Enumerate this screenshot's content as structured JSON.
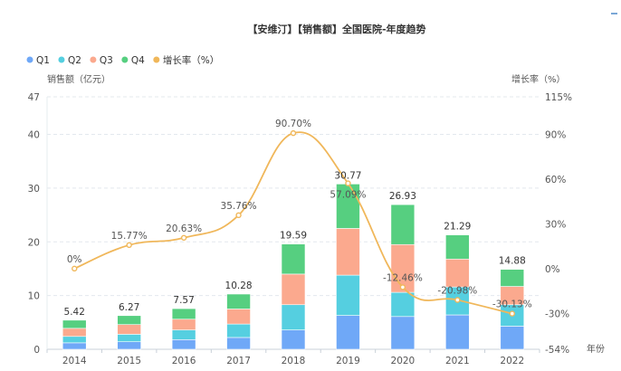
{
  "chart_data": {
    "type": "bar",
    "stacked": true,
    "title": "【安维汀】【销售额】全国医院-年度趋势",
    "xlabel": "年份",
    "ylabel": "销售额（亿元）",
    "ylabel_right": "增长率（%）",
    "categories": [
      "2014",
      "2015",
      "2016",
      "2017",
      "2018",
      "2019",
      "2020",
      "2021",
      "2022"
    ],
    "ylim": [
      0,
      47
    ],
    "yticks": [
      0,
      10,
      20,
      30,
      40,
      47
    ],
    "y2lim": [
      -54,
      115
    ],
    "y2ticks": [
      "-54%",
      "-30%",
      "0%",
      "30%",
      "60%",
      "90%",
      "115%"
    ],
    "y2tick_values": [
      -54,
      -30,
      0,
      30,
      60,
      90,
      115
    ],
    "legend_position": "top-left",
    "grid": true,
    "series": [
      {
        "name": "Q1",
        "color": "#6fa8f7",
        "values": [
          1.2,
          1.4,
          1.8,
          2.2,
          3.6,
          6.3,
          6.1,
          6.4,
          4.3
        ]
      },
      {
        "name": "Q2",
        "color": "#55cfe0",
        "values": [
          1.2,
          1.4,
          1.8,
          2.5,
          4.7,
          7.5,
          4.5,
          5.2,
          4.0
        ]
      },
      {
        "name": "Q3",
        "color": "#fba98e",
        "values": [
          1.5,
          1.8,
          2.0,
          2.8,
          5.7,
          8.7,
          8.9,
          5.2,
          3.4
        ]
      },
      {
        "name": "Q4",
        "color": "#56cf80",
        "values": [
          1.52,
          1.67,
          1.97,
          2.78,
          5.59,
          8.27,
          7.43,
          4.49,
          3.18
        ]
      }
    ],
    "totals": [
      "5.42",
      "6.27",
      "7.57",
      "10.28",
      "19.59",
      "30.77",
      "26.93",
      "21.29",
      "14.88"
    ],
    "total_values": [
      5.42,
      6.27,
      7.57,
      10.28,
      19.59,
      30.77,
      26.93,
      21.29,
      14.88
    ],
    "line": {
      "name": "增长率（%）",
      "color": "#f0b75a",
      "values": [
        0,
        15.77,
        20.63,
        35.76,
        90.7,
        57.09,
        -12.46,
        -20.98,
        -30.13
      ],
      "labels": [
        "0%",
        "15.77%",
        "20.63%",
        "35.76%",
        "90.70%",
        "57.09%",
        "-12.46%",
        "-20.98%",
        "-30.13%"
      ]
    },
    "legend": [
      "Q1",
      "Q2",
      "Q3",
      "Q4",
      "增长率（%）"
    ]
  }
}
